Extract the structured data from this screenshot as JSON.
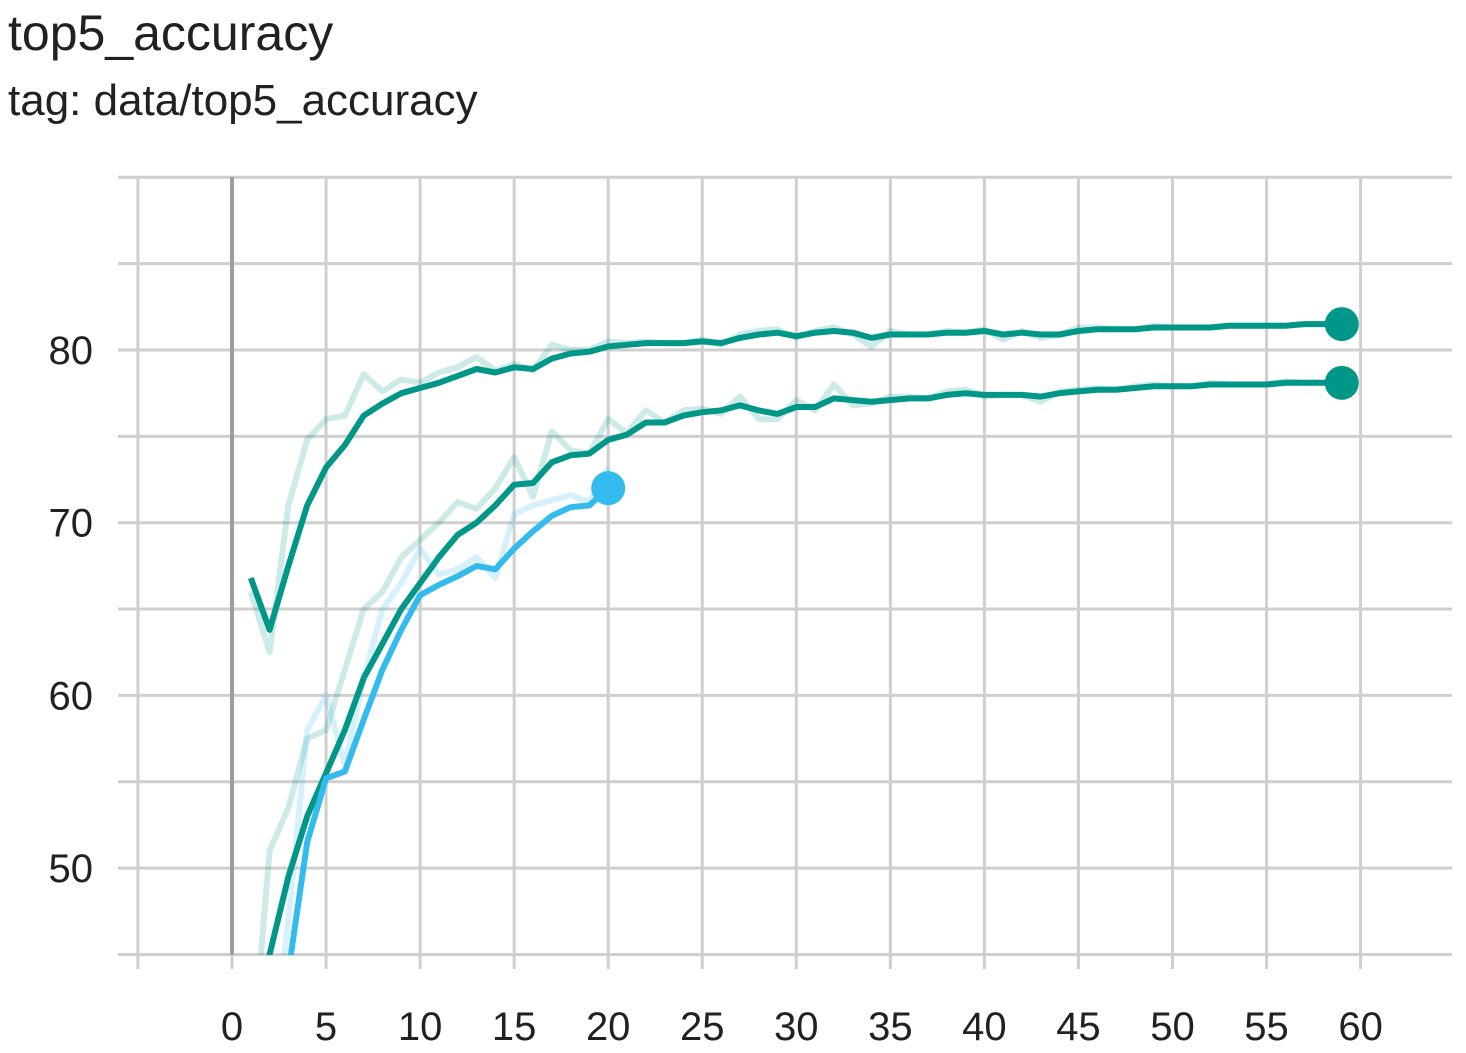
{
  "header": {
    "title": "top5_accuracy",
    "subtitle": "tag: data/top5_accuracy"
  },
  "chart_data": {
    "type": "line",
    "title": "top5_accuracy",
    "subtitle": "tag: data/top5_accuracy",
    "xlabel": "",
    "ylabel": "",
    "xlim": [
      -5,
      65
    ],
    "ylim": [
      45,
      90
    ],
    "x_ticks": [
      0,
      5,
      10,
      15,
      20,
      25,
      30,
      35,
      40,
      45,
      50,
      55,
      60
    ],
    "y_ticks": [
      50,
      60,
      70,
      80
    ],
    "grid": true,
    "series": [
      {
        "color": "#009688",
        "x": [
          1,
          2,
          3,
          4,
          5,
          6,
          7,
          8,
          9,
          10,
          11,
          12,
          13,
          14,
          15,
          16,
          17,
          18,
          19,
          20,
          21,
          22,
          23,
          24,
          25,
          26,
          27,
          28,
          29,
          30,
          31,
          32,
          33,
          34,
          35,
          36,
          37,
          38,
          39,
          40,
          41,
          42,
          43,
          44,
          45,
          46,
          47,
          48,
          49,
          50,
          51,
          52,
          53,
          54,
          55,
          56,
          57,
          58,
          59
        ],
        "y": [
          66.8,
          63.8,
          67.5,
          71.0,
          73.2,
          74.5,
          76.2,
          76.9,
          77.5,
          77.8,
          78.1,
          78.5,
          78.9,
          78.7,
          79.0,
          78.9,
          79.5,
          79.8,
          79.9,
          80.2,
          80.3,
          80.4,
          80.4,
          80.4,
          80.5,
          80.4,
          80.7,
          80.9,
          81.0,
          80.8,
          81.0,
          81.1,
          81.0,
          80.7,
          80.9,
          80.9,
          80.9,
          81.0,
          81.0,
          81.1,
          80.9,
          81.0,
          80.9,
          80.9,
          81.1,
          81.2,
          81.2,
          81.2,
          81.3,
          81.3,
          81.3,
          81.3,
          81.4,
          81.4,
          81.4,
          81.4,
          81.5,
          81.5,
          81.5
        ],
        "raw": [
          66.0,
          62.5,
          71.0,
          74.8,
          76.0,
          76.2,
          78.6,
          77.6,
          78.3,
          78.1,
          78.7,
          79.0,
          79.6,
          78.8,
          79.2,
          78.8,
          80.3,
          80.0,
          80.0,
          80.5,
          80.4,
          80.5,
          80.4,
          80.4,
          80.6,
          80.3,
          80.9,
          81.1,
          81.2,
          80.7,
          81.1,
          81.3,
          80.9,
          80.2,
          81.1,
          80.9,
          80.9,
          81.1,
          81.0,
          81.2,
          80.6,
          81.1,
          80.7,
          80.9,
          81.3,
          81.3,
          81.2,
          81.2,
          81.4,
          81.3,
          81.3,
          81.3,
          81.4,
          81.4,
          81.4,
          81.4,
          81.5,
          81.5,
          81.5
        ],
        "last": [
          59,
          81.5
        ]
      },
      {
        "color": "#009688",
        "x": [
          1,
          2,
          3,
          4,
          5,
          6,
          7,
          8,
          9,
          10,
          11,
          12,
          13,
          14,
          15,
          16,
          17,
          18,
          19,
          20,
          21,
          22,
          23,
          24,
          25,
          26,
          27,
          28,
          29,
          30,
          31,
          32,
          33,
          34,
          35,
          36,
          37,
          38,
          39,
          40,
          41,
          42,
          43,
          44,
          45,
          46,
          47,
          48,
          49,
          50,
          51,
          52,
          53,
          54,
          55,
          56,
          57,
          58,
          59
        ],
        "y": [
          38.0,
          45.0,
          49.5,
          53.0,
          55.5,
          58.0,
          61.0,
          63.0,
          65.0,
          66.5,
          68.0,
          69.3,
          70.0,
          71.0,
          72.2,
          72.3,
          73.5,
          73.9,
          74.0,
          74.8,
          75.1,
          75.8,
          75.8,
          76.2,
          76.4,
          76.5,
          76.8,
          76.5,
          76.3,
          76.7,
          76.7,
          77.2,
          77.1,
          77.0,
          77.1,
          77.2,
          77.2,
          77.4,
          77.5,
          77.4,
          77.4,
          77.4,
          77.3,
          77.5,
          77.6,
          77.7,
          77.7,
          77.8,
          77.9,
          77.9,
          77.9,
          78.0,
          78.0,
          78.0,
          78.0,
          78.1,
          78.1,
          78.1,
          78.1
        ],
        "raw": [
          38.0,
          51.0,
          53.5,
          57.5,
          58.0,
          61.5,
          65.0,
          66.0,
          68.0,
          69.0,
          70.0,
          71.2,
          70.8,
          72.0,
          73.8,
          71.5,
          75.3,
          74.2,
          74.0,
          76.0,
          75.2,
          76.5,
          75.8,
          76.5,
          76.6,
          76.3,
          77.3,
          76.0,
          76.0,
          77.1,
          76.5,
          78.0,
          76.8,
          76.9,
          77.3,
          77.3,
          77.2,
          77.6,
          77.7,
          77.3,
          77.4,
          77.4,
          77.0,
          77.6,
          77.7,
          77.8,
          77.7,
          77.9,
          78.0,
          77.9,
          77.9,
          78.1,
          78.0,
          78.0,
          78.0,
          78.2,
          78.1,
          78.1,
          78.1
        ],
        "last": [
          59,
          78.1
        ]
      },
      {
        "color": "#33bbee",
        "x": [
          2,
          3,
          4,
          5,
          6,
          7,
          8,
          9,
          10,
          11,
          12,
          13,
          14,
          15,
          16,
          17,
          18,
          19,
          20
        ],
        "y": [
          38.0,
          44.0,
          51.5,
          55.2,
          55.6,
          58.6,
          61.5,
          63.8,
          65.8,
          66.4,
          66.9,
          67.5,
          67.3,
          68.5,
          69.5,
          70.4,
          70.9,
          71.0,
          72.0
        ],
        "raw": [
          38.0,
          47.0,
          58.0,
          60.0,
          56.0,
          61.0,
          65.0,
          66.5,
          68.5,
          67.0,
          67.3,
          68.0,
          66.8,
          70.5,
          71.0,
          71.3,
          71.6,
          71.2,
          73.2
        ],
        "last": [
          20,
          72.0
        ]
      }
    ]
  }
}
